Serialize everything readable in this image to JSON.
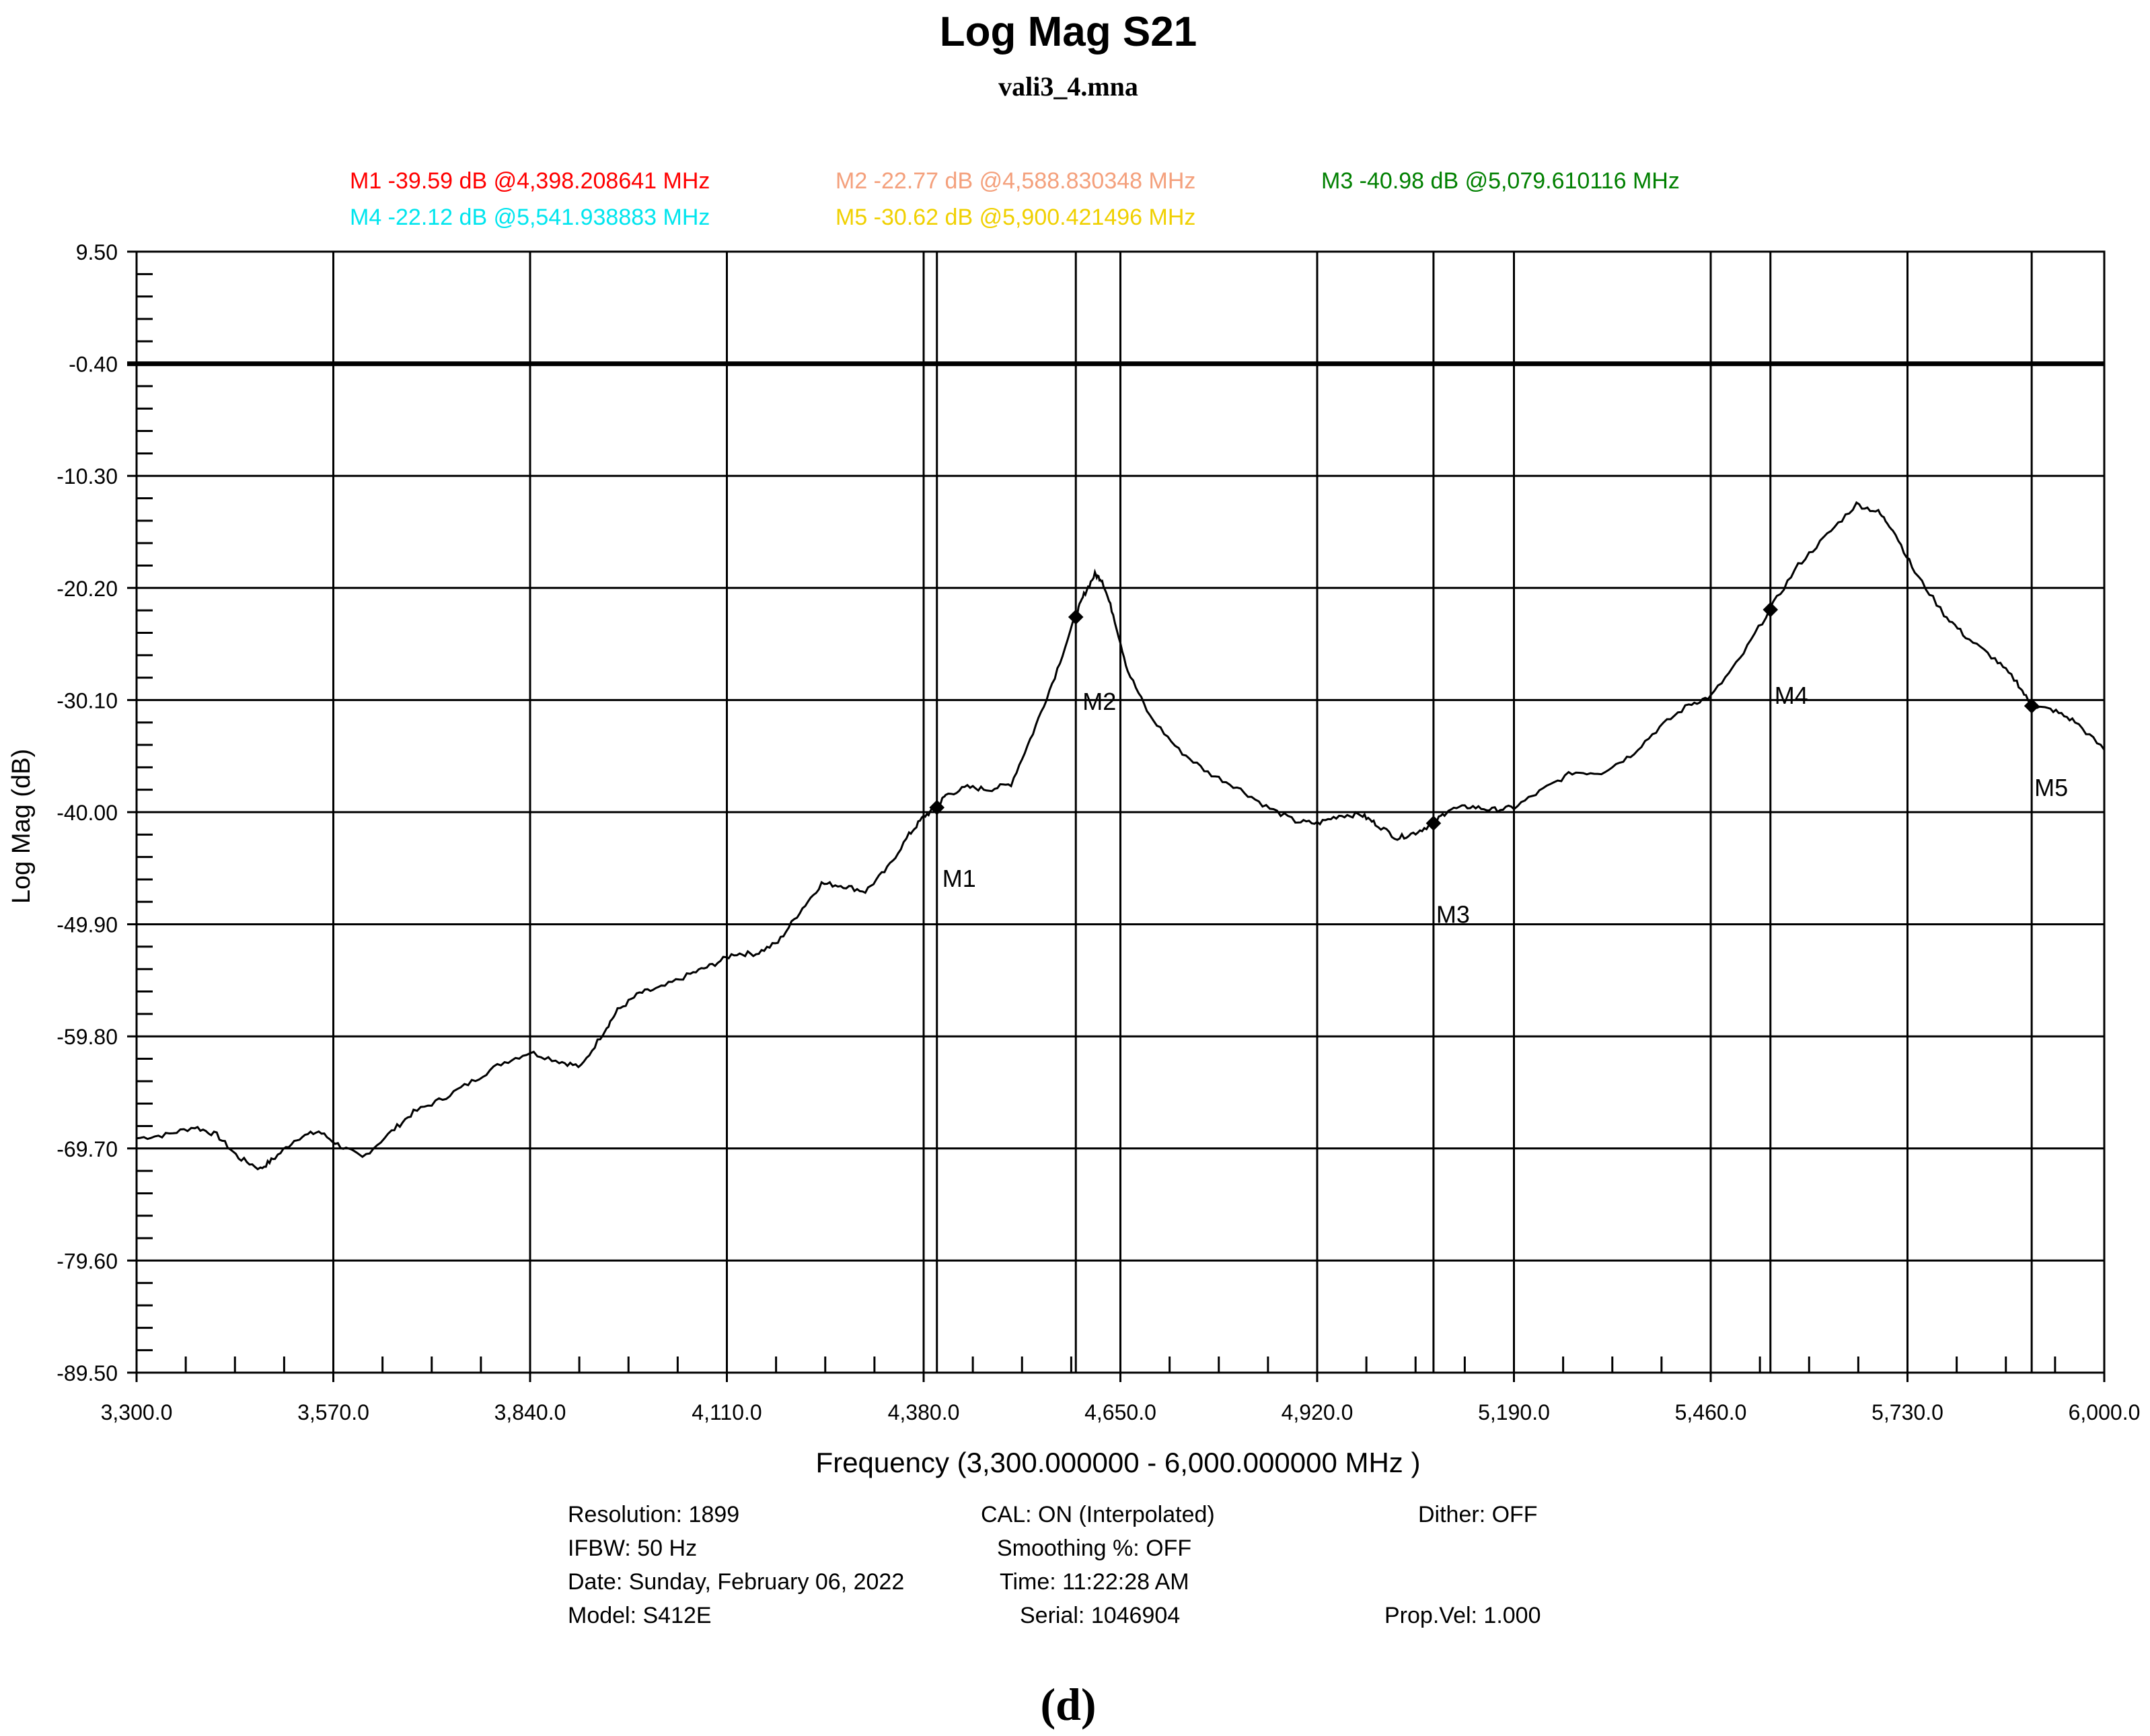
{
  "title": "Log Mag S21",
  "subtitle": "vali3_4.mna",
  "caption": "(d)",
  "markers_legend": [
    {
      "id": "M1",
      "text": "M1 -39.59 dB @4,398.208641 MHz",
      "color": "#ff0000"
    },
    {
      "id": "M2",
      "text": "M2 -22.77 dB @4,588.830348 MHz",
      "color": "#f4a07c"
    },
    {
      "id": "M3",
      "text": "M3 -40.98 dB @5,079.610116 MHz",
      "color": "#008000"
    },
    {
      "id": "M4",
      "text": "M4 -22.12 dB @5,541.938883 MHz",
      "color": "#00e5ee"
    },
    {
      "id": "M5",
      "text": "M5 -30.62 dB @5,900.421496 MHz",
      "color": "#f0d000"
    }
  ],
  "footer": {
    "resolution": "Resolution: 1899",
    "ifbw": "IFBW: 50 Hz",
    "date": "Date:  Sunday, February 06, 2022",
    "model": "Model:  S412E",
    "cal": "CAL:  ON (Interpolated)",
    "smoothing": "Smoothing %:  OFF",
    "time": "Time:  11:22:28 AM",
    "serial": "Serial:  1046904",
    "dither": "Dither:   OFF",
    "propvel": "Prop.Vel:  1.000"
  },
  "chart_data": {
    "type": "line",
    "xlabel": "Frequency (3,300.000000 - 6,000.000000 MHz )",
    "ylabel": "Log Mag (dB)",
    "xlim": [
      3300,
      6000
    ],
    "ylim": [
      -89.5,
      9.5
    ],
    "x_ticks": [
      3300,
      3570,
      3840,
      4110,
      4380,
      4650,
      4920,
      5190,
      5460,
      5730,
      6000
    ],
    "x_tick_labels": [
      "3,300.0",
      "3,570.0",
      "3,840.0",
      "4,110.0",
      "4,380.0",
      "4,650.0",
      "4,920.0",
      "5,190.0",
      "5,460.0",
      "5,730.0",
      "6,000.0"
    ],
    "y_ticks": [
      9.5,
      -0.4,
      -10.3,
      -20.2,
      -30.1,
      -40.0,
      -49.9,
      -59.8,
      -69.7,
      -79.6,
      -89.5
    ],
    "y_tick_labels": [
      "9.50",
      "-0.40",
      "-10.30",
      "-20.20",
      "-30.10",
      "-40.00",
      "-49.90",
      "-59.80",
      "-69.70",
      "-79.60",
      "-89.50"
    ],
    "reference_line": -0.4,
    "grid": true,
    "series": [
      {
        "x": [
          3300,
          3340,
          3380,
          3410,
          3440,
          3470,
          3490,
          3520,
          3550,
          3580,
          3610,
          3650,
          3680,
          3720,
          3760,
          3800,
          3840,
          3880,
          3910,
          3940,
          3960,
          3990,
          4020,
          4060,
          4090,
          4120,
          4150,
          4180,
          4210,
          4240,
          4270,
          4300,
          4330,
          4360,
          4380,
          4398,
          4410,
          4440,
          4470,
          4500,
          4530,
          4560,
          4588,
          4600,
          4615,
          4625,
          4640,
          4660,
          4690,
          4730,
          4770,
          4810,
          4850,
          4890,
          4920,
          4950,
          4980,
          5000,
          5030,
          5055,
          5079,
          5100,
          5130,
          5160,
          5190,
          5230,
          5270,
          5310,
          5350,
          5390,
          5430,
          5460,
          5500,
          5541,
          5580,
          5620,
          5660,
          5690,
          5710,
          5740,
          5780,
          5810,
          5850,
          5880,
          5900,
          5930,
          5960,
          6000
        ],
        "y": [
          -68.8,
          -68.5,
          -67.8,
          -68.5,
          -70.5,
          -71.5,
          -70.5,
          -68.8,
          -68.2,
          -69.5,
          -70.5,
          -68.2,
          -66.5,
          -65.3,
          -63.8,
          -62.2,
          -61.2,
          -62.0,
          -62.5,
          -59.5,
          -57.5,
          -56.0,
          -55.5,
          -54.3,
          -53.5,
          -52.5,
          -52.5,
          -51.5,
          -48.8,
          -46.3,
          -46.5,
          -47.0,
          -45.0,
          -42.0,
          -40.4,
          -39.6,
          -38.5,
          -37.8,
          -38.0,
          -37.5,
          -33.0,
          -28.0,
          -22.8,
          -20.8,
          -19.0,
          -19.5,
          -22.5,
          -27.5,
          -31.5,
          -34.5,
          -36.5,
          -37.8,
          -39.5,
          -40.8,
          -41.0,
          -40.3,
          -40.2,
          -41.0,
          -42.3,
          -41.8,
          -41.0,
          -39.8,
          -39.5,
          -39.8,
          -39.6,
          -38.0,
          -36.5,
          -36.5,
          -35.0,
          -32.5,
          -30.5,
          -29.8,
          -26.5,
          -22.1,
          -18.2,
          -15.5,
          -12.8,
          -13.5,
          -15.0,
          -18.8,
          -22.5,
          -24.5,
          -26.5,
          -28.5,
          -30.6,
          -31.0,
          -32.0,
          -34.5
        ]
      }
    ],
    "markers": [
      {
        "label": "M1",
        "x": 4398.208641,
        "y": -39.59
      },
      {
        "label": "M2",
        "x": 4588.830348,
        "y": -22.77
      },
      {
        "label": "M3",
        "x": 5079.610116,
        "y": -40.98
      },
      {
        "label": "M4",
        "x": 5541.938883,
        "y": -22.12
      },
      {
        "label": "M5",
        "x": 5900.421496,
        "y": -30.62
      }
    ]
  }
}
